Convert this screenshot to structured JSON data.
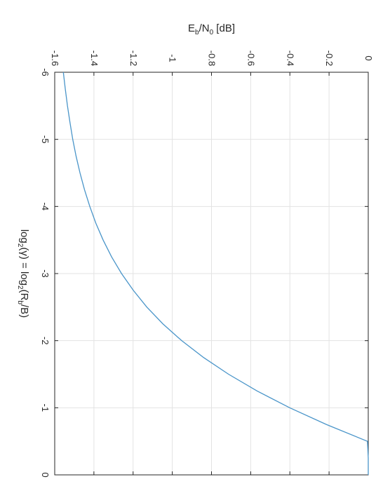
{
  "chart_data": {
    "type": "line",
    "orientation": "rotated 90 degrees clockwise",
    "x_axis": {
      "label_main": "log",
      "label_sub1": "2",
      "label_mid": "(γ) = log",
      "label_sub2": "2",
      "label_mid2": "(R",
      "label_sub3": "b",
      "label_end": "/B)",
      "range": [
        -6,
        0
      ],
      "ticks": [
        -6,
        -5,
        -4,
        -3,
        -2,
        -1,
        0
      ]
    },
    "y_axis": {
      "label_main": "E",
      "label_sub1": "b",
      "label_mid": "/N",
      "label_sub2": "0",
      "label_end": " [dB]",
      "range": [
        -1.6,
        0
      ],
      "ticks": [
        -1.6,
        -1.4,
        -1.2,
        -1,
        -0.8,
        -0.6,
        -0.4,
        -0.2,
        0
      ],
      "tick_labels": [
        "-1.6",
        "-1.4",
        "-1.2",
        "-1",
        "-0.8",
        "-0.6",
        "-0.4",
        "-0.2",
        "0"
      ]
    },
    "grid": true,
    "series": [
      {
        "color": "#4a95c9",
        "x": [
          -6,
          -5.75,
          -5.5,
          -5.25,
          -5,
          -4.75,
          -4.5,
          -4.25,
          -4,
          -3.75,
          -3.5,
          -3.25,
          -3,
          -2.75,
          -2.5,
          -2.25,
          -2,
          -1.75,
          -1.5,
          -1.25,
          -1,
          -0.75,
          -0.5,
          -0.25,
          0
        ],
        "y": [
          -1.556,
          -1.546,
          -1.535,
          -1.522,
          -1.508,
          -1.491,
          -1.471,
          -1.448,
          -1.421,
          -1.39,
          -1.353,
          -1.31,
          -1.259,
          -1.199,
          -1.13,
          -1.048,
          -0.952,
          -0.841,
          -0.713,
          -0.567,
          -0.401,
          -0.213,
          -0.004,
          0.0,
          0.0
        ]
      }
    ]
  }
}
